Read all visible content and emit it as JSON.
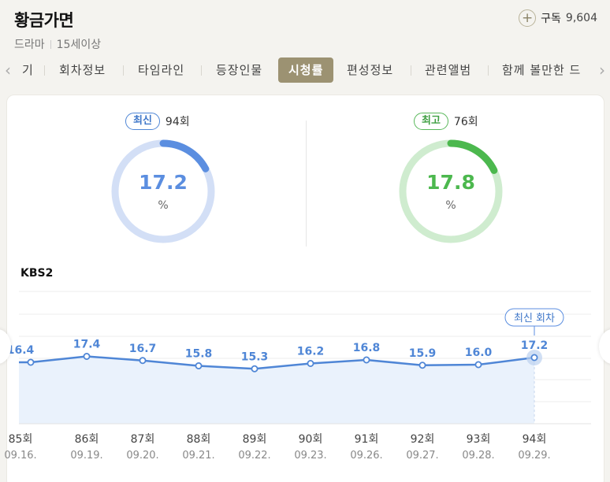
{
  "header": {
    "title": "황금가면",
    "genre": "드라마",
    "rating": "15세이상",
    "subscribe_label": "구독",
    "subscribe_count": "9,604"
  },
  "tabs": [
    {
      "label": "기",
      "active": false
    },
    {
      "label": "회차정보",
      "active": false
    },
    {
      "label": "타임라인",
      "active": false
    },
    {
      "label": "등장인물",
      "active": false
    },
    {
      "label": "시청률",
      "active": true
    },
    {
      "label": "편성정보",
      "active": false
    },
    {
      "label": "관련앨범",
      "active": false
    },
    {
      "label": "함께 볼만한 드",
      "active": false
    }
  ],
  "stats": {
    "latest": {
      "badge": "최신",
      "episode": "94회",
      "value": "17.2",
      "unit": "%",
      "percent": 17.2,
      "color": "#5b8ee0",
      "track": "#d3dff6"
    },
    "highest": {
      "badge": "최고",
      "episode": "76회",
      "value": "17.8",
      "unit": "%",
      "percent": 17.8,
      "color": "#4cb84e",
      "track": "#cfeccf"
    }
  },
  "channel": "KBS2",
  "chart_data": {
    "type": "line",
    "episodes": [
      "85회",
      "86회",
      "87회",
      "88회",
      "89회",
      "90회",
      "91회",
      "92회",
      "93회",
      "94회"
    ],
    "dates": [
      "09.16.",
      "09.19.",
      "09.20.",
      "09.21.",
      "09.22.",
      "09.23.",
      "09.26.",
      "09.27.",
      "09.28.",
      "09.29."
    ],
    "values": [
      16.4,
      17.4,
      16.7,
      15.8,
      15.3,
      16.2,
      16.8,
      15.9,
      16.0,
      17.2
    ],
    "latest_label": "최신 회차",
    "line_color": "#4f86d6",
    "fill_color": "#eaf2fc"
  }
}
